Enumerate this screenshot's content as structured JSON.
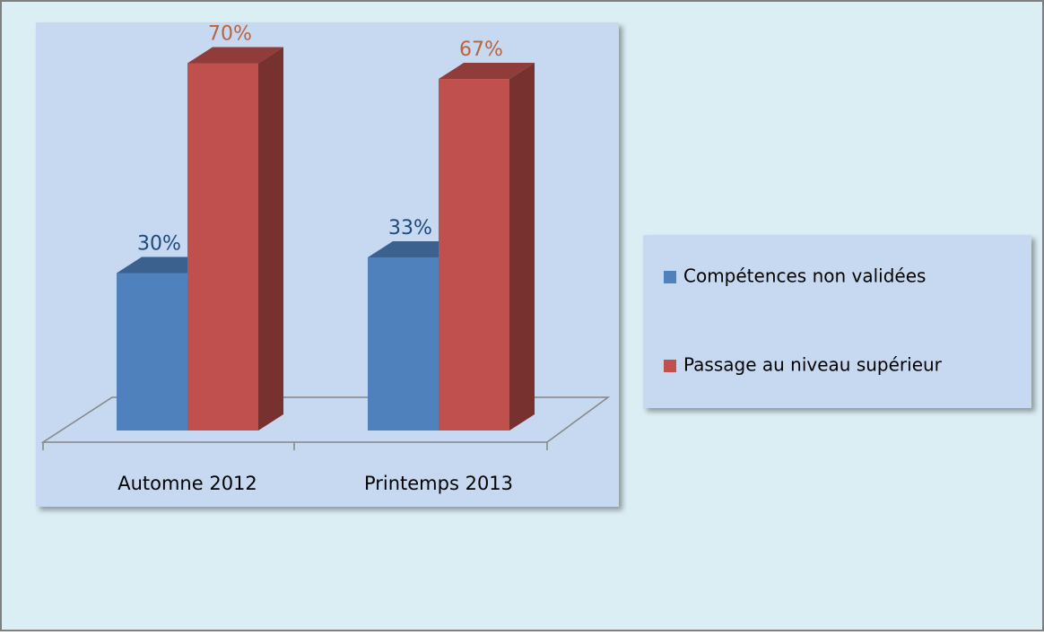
{
  "chart_data": {
    "type": "bar3d",
    "categories": [
      "Automne 2012",
      "Printemps 2013"
    ],
    "series": [
      {
        "name": "Compétences non validées",
        "color": "#4f81bd",
        "values": [
          30,
          33
        ],
        "value_labels": [
          "30%",
          "33%"
        ]
      },
      {
        "name": "Passage au niveau supérieur",
        "color": "#c0504d",
        "values": [
          70,
          67
        ],
        "value_labels": [
          "70%",
          "67%"
        ]
      }
    ],
    "legend": "right"
  }
}
